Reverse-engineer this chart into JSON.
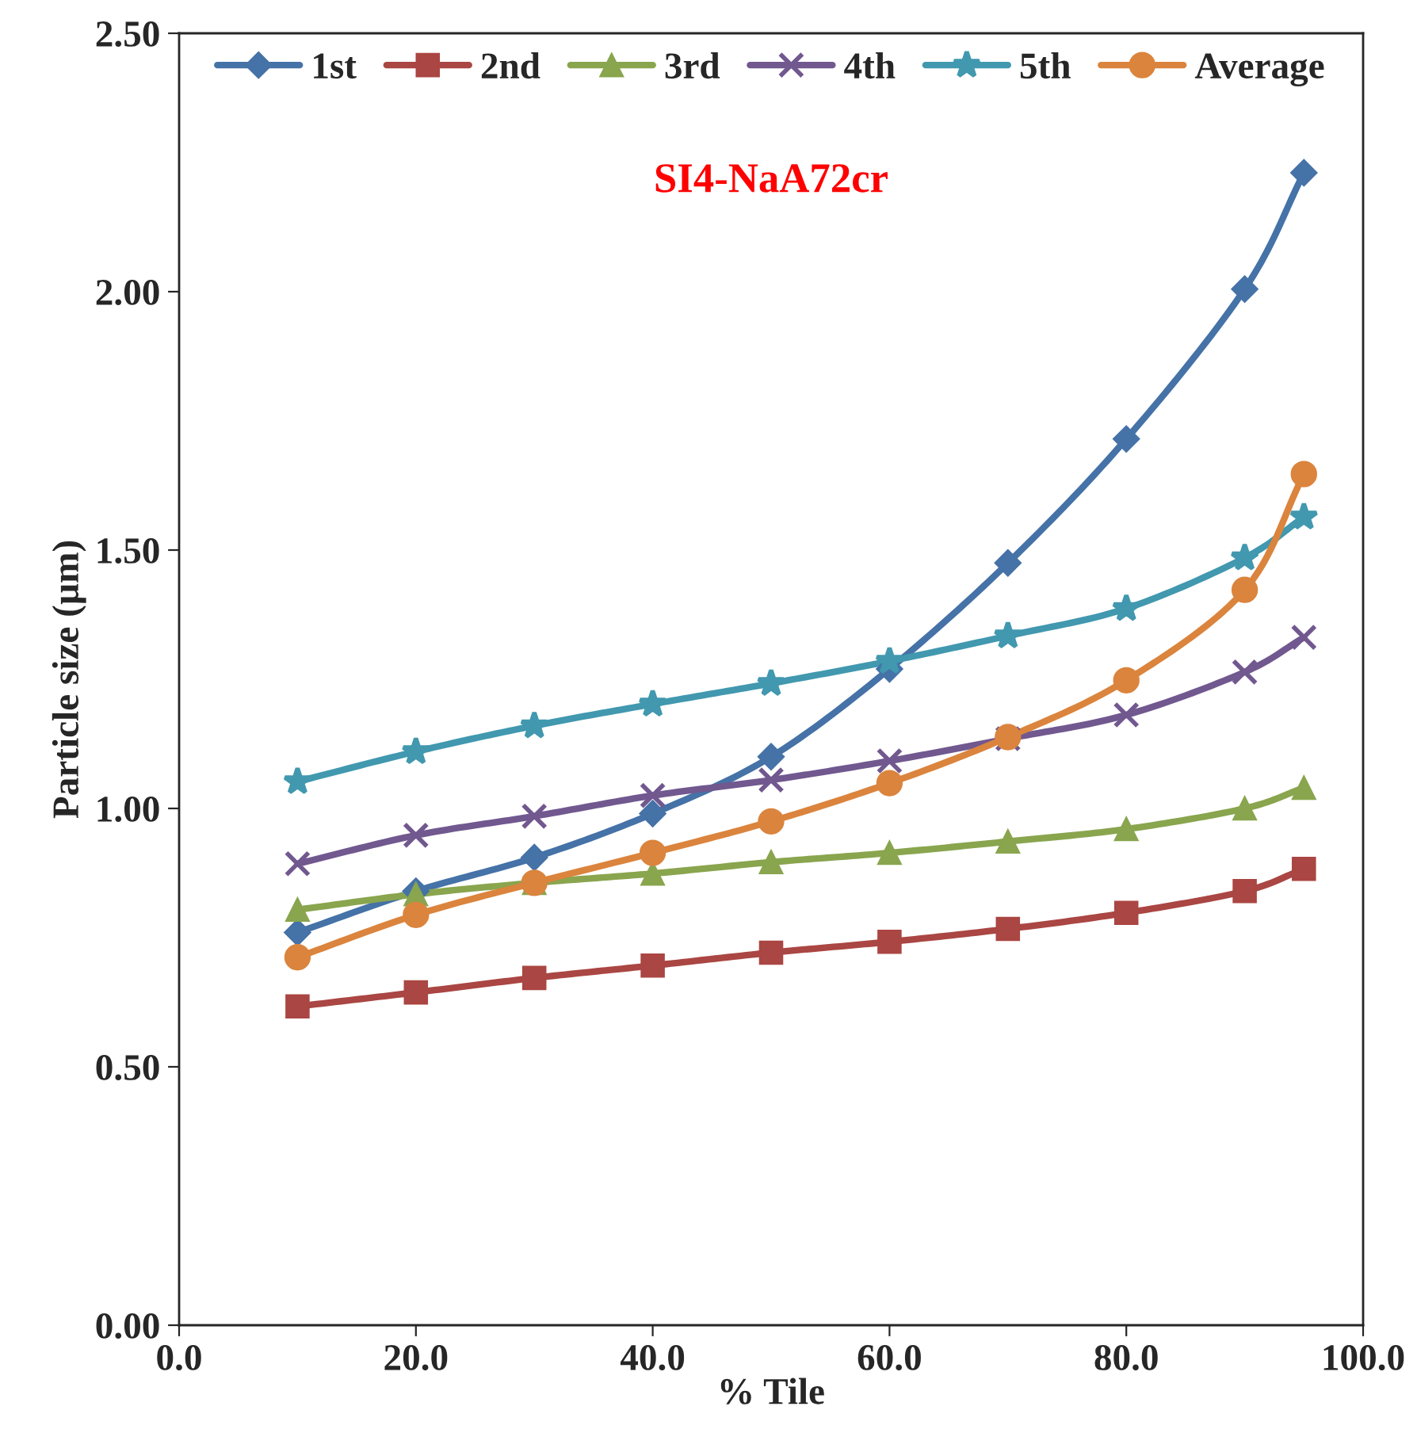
{
  "chart_data": {
    "type": "line",
    "title": "SI4-NaA72cr",
    "xlabel": "% Tile",
    "ylabel": "Particle size (µm)",
    "x": [
      10,
      20,
      30,
      40,
      50,
      60,
      70,
      80,
      90,
      95
    ],
    "series": [
      {
        "name": "1st",
        "color": "#4572a7",
        "marker": "diamond",
        "values": [
          0.76,
          0.84,
          0.905,
          0.99,
          1.1,
          1.27,
          1.475,
          1.715,
          2.005,
          2.23
        ]
      },
      {
        "name": "2nd",
        "color": "#aa4643",
        "marker": "square",
        "values": [
          0.617,
          0.644,
          0.672,
          0.696,
          0.721,
          0.742,
          0.767,
          0.798,
          0.84,
          0.883
        ]
      },
      {
        "name": "3rd",
        "color": "#89a54e",
        "marker": "triangle",
        "values": [
          0.804,
          0.834,
          0.856,
          0.874,
          0.896,
          0.914,
          0.936,
          0.96,
          1.0,
          1.04
        ]
      },
      {
        "name": "4th",
        "color": "#71588f",
        "marker": "cross",
        "values": [
          0.893,
          0.948,
          0.985,
          1.025,
          1.055,
          1.092,
          1.135,
          1.181,
          1.264,
          1.331
        ]
      },
      {
        "name": "5th",
        "color": "#4198af",
        "marker": "star",
        "values": [
          1.052,
          1.11,
          1.16,
          1.202,
          1.242,
          1.285,
          1.334,
          1.387,
          1.485,
          1.564
        ]
      },
      {
        "name": "Average",
        "color": "#db843d",
        "marker": "circle",
        "values": [
          0.712,
          0.794,
          0.856,
          0.914,
          0.975,
          1.049,
          1.138,
          1.248,
          1.423,
          1.647
        ]
      }
    ],
    "xlim": [
      0,
      100
    ],
    "xticks": [
      {
        "value": 0,
        "label": "0.0"
      },
      {
        "value": 20,
        "label": "20.0"
      },
      {
        "value": 40,
        "label": "40.0"
      },
      {
        "value": 60,
        "label": "60.0"
      },
      {
        "value": 80,
        "label": "80.0"
      },
      {
        "value": 100,
        "label": "100.0"
      }
    ],
    "ylim": [
      0,
      2.5
    ],
    "yticks": [
      {
        "value": 0,
        "label": "0.00"
      },
      {
        "value": 0.5,
        "label": "0.50"
      },
      {
        "value": 1.0,
        "label": "1.00"
      },
      {
        "value": 1.5,
        "label": "1.50"
      },
      {
        "value": 2.0,
        "label": "2.00"
      },
      {
        "value": 2.5,
        "label": "2.50"
      }
    ],
    "legend": "top",
    "grid": false,
    "line_style": "solid"
  }
}
